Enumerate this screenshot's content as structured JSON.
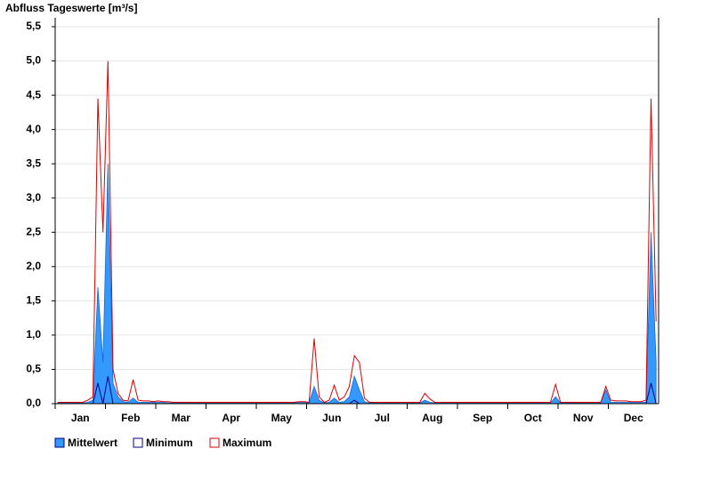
{
  "chart_data": {
    "type": "area-line",
    "title": "Abfluss Tageswerte [m³/s]",
    "categories": [
      null,
      null,
      null,
      null,
      null,
      "Jan",
      null,
      null,
      null,
      null,
      null,
      null,
      null,
      null,
      null,
      "Feb",
      null,
      null,
      null,
      null,
      null,
      null,
      null,
      null,
      null,
      "Mar",
      null,
      null,
      null,
      null,
      null,
      null,
      null,
      null,
      null,
      "Apr",
      null,
      null,
      null,
      null,
      null,
      null,
      null,
      null,
      null,
      "May",
      null,
      null,
      null,
      null,
      null,
      null,
      null,
      null,
      null,
      "Jun",
      null,
      null,
      null,
      null,
      null,
      null,
      null,
      null,
      null,
      "Jul",
      null,
      null,
      null,
      null,
      null,
      null,
      null,
      null,
      null,
      "Aug",
      null,
      null,
      null,
      null,
      null,
      null,
      null,
      null,
      null,
      "Sep",
      null,
      null,
      null,
      null,
      null,
      null,
      null,
      null,
      null,
      "Oct",
      null,
      null,
      null,
      null,
      null,
      null,
      null,
      null,
      null,
      "Nov",
      null,
      null,
      null,
      null,
      null,
      null,
      null,
      null,
      null,
      "Dec",
      null,
      null,
      null,
      null
    ],
    "series": [
      {
        "name": "Mittelwert",
        "color": "#3399ff",
        "values": [
          0.01,
          0.01,
          0.01,
          0.01,
          0.01,
          0.01,
          0.02,
          0.05,
          1.7,
          0.6,
          3.5,
          0.3,
          0.1,
          0.03,
          0.02,
          0.08,
          0.02,
          0.02,
          0.02,
          0.02,
          0.02,
          0.02,
          0.01,
          0.01,
          0.01,
          0.01,
          0.01,
          0.01,
          0.01,
          0.01,
          0.01,
          0.01,
          0.01,
          0.01,
          0.01,
          0.01,
          0.01,
          0.01,
          0.01,
          0.01,
          0.01,
          0.01,
          0.01,
          0.01,
          0.01,
          0.01,
          0.01,
          0.01,
          0.02,
          0.02,
          0.01,
          0.25,
          0.05,
          0.01,
          0.02,
          0.08,
          0.02,
          0.03,
          0.1,
          0.4,
          0.2,
          0.03,
          0.01,
          0.01,
          0.01,
          0.01,
          0.01,
          0.01,
          0.01,
          0.01,
          0.01,
          0.01,
          0.01,
          0.05,
          0.02,
          0.01,
          0.01,
          0.01,
          0.01,
          0.01,
          0.01,
          0.01,
          0.01,
          0.01,
          0.01,
          0.01,
          0.01,
          0.01,
          0.01,
          0.01,
          0.01,
          0.01,
          0.01,
          0.01,
          0.01,
          0.01,
          0.01,
          0.01,
          0.01,
          0.1,
          0.01,
          0.01,
          0.01,
          0.01,
          0.01,
          0.01,
          0.01,
          0.01,
          0.01,
          0.2,
          0.02,
          0.02,
          0.02,
          0.02,
          0.02,
          0.02,
          0.02,
          0.02,
          2.5,
          0.6
        ]
      },
      {
        "name": "Minimum",
        "color": "#000080",
        "values": [
          0,
          0,
          0,
          0,
          0,
          0,
          0,
          0,
          0.3,
          0,
          0.4,
          0,
          0,
          0,
          0,
          0,
          0,
          0,
          0,
          0,
          0,
          0,
          0,
          0,
          0,
          0,
          0,
          0,
          0,
          0,
          0,
          0,
          0,
          0,
          0,
          0,
          0,
          0,
          0,
          0,
          0,
          0,
          0,
          0,
          0,
          0,
          0,
          0,
          0,
          0,
          0,
          0,
          0,
          0,
          0,
          0,
          0,
          0,
          0,
          0.05,
          0,
          0,
          0,
          0,
          0,
          0,
          0,
          0,
          0,
          0,
          0,
          0,
          0,
          0,
          0,
          0,
          0,
          0,
          0,
          0,
          0,
          0,
          0,
          0,
          0,
          0,
          0,
          0,
          0,
          0,
          0,
          0,
          0,
          0,
          0,
          0,
          0,
          0,
          0,
          0,
          0,
          0,
          0,
          0,
          0,
          0,
          0,
          0,
          0,
          0,
          0,
          0,
          0,
          0,
          0,
          0,
          0,
          0,
          0.3,
          0
        ]
      },
      {
        "name": "Maximum",
        "color": "#dd0000",
        "values": [
          0.02,
          0.02,
          0.02,
          0.02,
          0.02,
          0.02,
          0.05,
          0.1,
          4.45,
          2.5,
          5.0,
          0.5,
          0.15,
          0.05,
          0.04,
          0.35,
          0.05,
          0.04,
          0.04,
          0.03,
          0.04,
          0.03,
          0.03,
          0.02,
          0.02,
          0.02,
          0.02,
          0.02,
          0.02,
          0.02,
          0.02,
          0.02,
          0.02,
          0.02,
          0.02,
          0.02,
          0.02,
          0.02,
          0.02,
          0.02,
          0.02,
          0.02,
          0.02,
          0.02,
          0.02,
          0.02,
          0.02,
          0.02,
          0.03,
          0.03,
          0.02,
          0.95,
          0.1,
          0.02,
          0.05,
          0.27,
          0.05,
          0.1,
          0.25,
          0.7,
          0.6,
          0.08,
          0.02,
          0.02,
          0.02,
          0.02,
          0.02,
          0.02,
          0.02,
          0.02,
          0.02,
          0.02,
          0.02,
          0.15,
          0.07,
          0.02,
          0.02,
          0.02,
          0.02,
          0.02,
          0.02,
          0.02,
          0.02,
          0.02,
          0.02,
          0.02,
          0.02,
          0.02,
          0.02,
          0.02,
          0.02,
          0.02,
          0.02,
          0.02,
          0.02,
          0.02,
          0.02,
          0.02,
          0.02,
          0.28,
          0.02,
          0.02,
          0.02,
          0.02,
          0.02,
          0.02,
          0.02,
          0.02,
          0.02,
          0.25,
          0.05,
          0.04,
          0.04,
          0.04,
          0.03,
          0.03,
          0.03,
          0.05,
          4.45,
          1.2
        ]
      }
    ],
    "ylim": [
      0,
      5.63
    ],
    "yticks": [
      {
        "value": 0,
        "label": "0,0"
      },
      {
        "value": 0.5,
        "label": "0,5"
      },
      {
        "value": 1,
        "label": "1,0"
      },
      {
        "value": 1.5,
        "label": "1,5"
      },
      {
        "value": 2,
        "label": "2,0"
      },
      {
        "value": 2.5,
        "label": "2,5"
      },
      {
        "value": 3,
        "label": "3,0"
      },
      {
        "value": 3.5,
        "label": "3,5"
      },
      {
        "value": 4,
        "label": "4,0"
      },
      {
        "value": 4.5,
        "label": "4,5"
      },
      {
        "value": 5,
        "label": "5,0"
      },
      {
        "value": 5.5,
        "label": "5,5"
      }
    ],
    "grid": true
  }
}
